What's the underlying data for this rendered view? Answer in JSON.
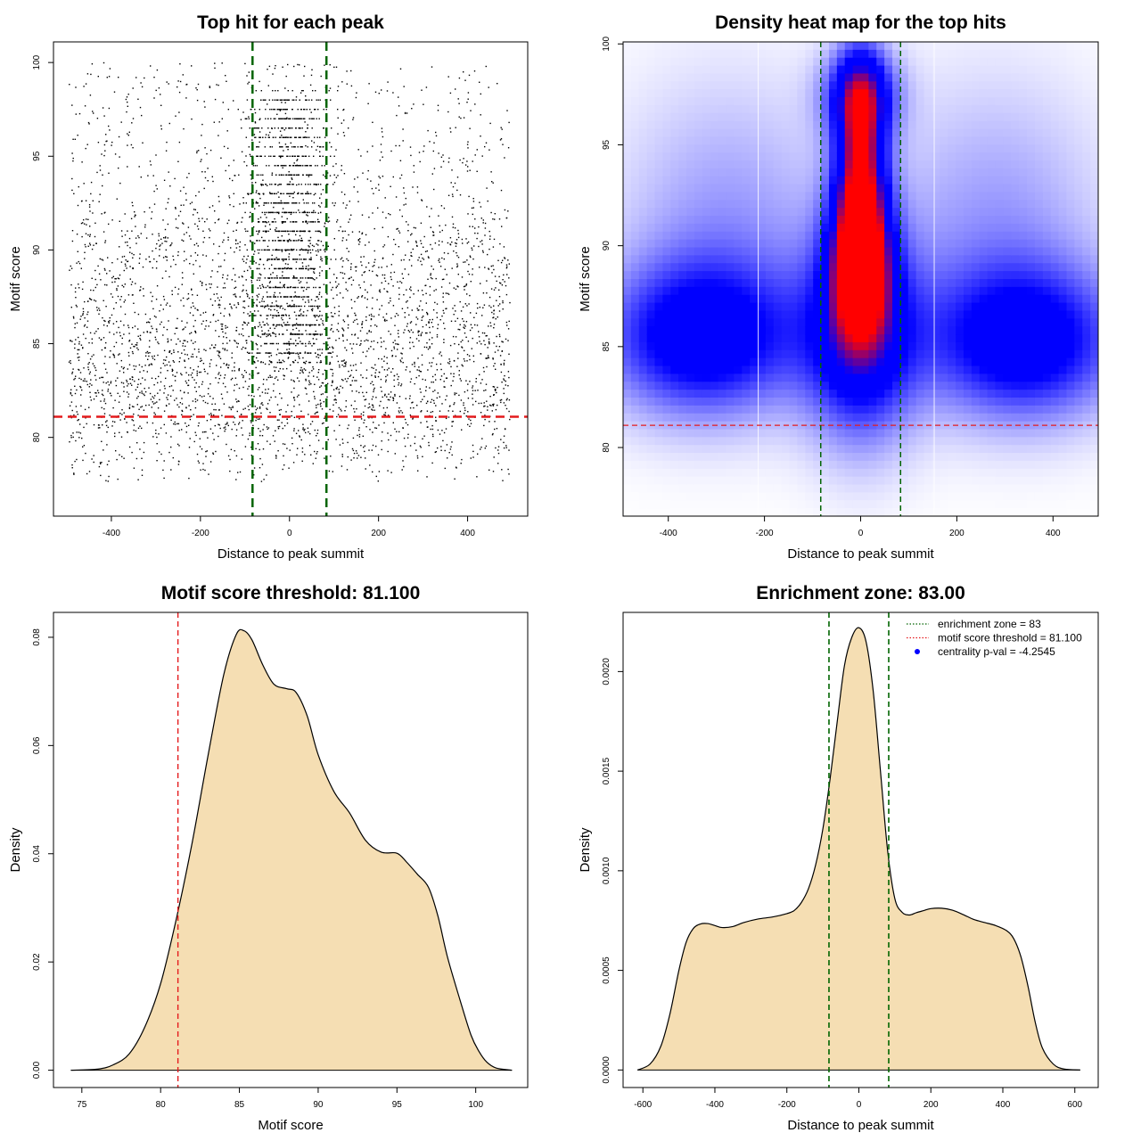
{
  "chart_data": [
    {
      "id": "scatter",
      "type": "scatter",
      "title": "Top hit for each peak",
      "xlabel": "Distance to peak summit",
      "ylabel": "Motif score",
      "xlim": [
        -530,
        535
      ],
      "ylim": [
        75.8,
        101.1
      ],
      "xticks": [
        -400,
        -200,
        0,
        200,
        400
      ],
      "yticks": [
        80,
        85,
        90,
        95,
        100
      ],
      "xtick_labels": [
        "-400",
        "-200",
        "0",
        "200",
        "400"
      ],
      "ytick_labels": [
        "80",
        "85",
        "90",
        "95",
        "100"
      ],
      "n_points": 5200,
      "x_range": [
        -495,
        495
      ],
      "score_range": [
        77.6,
        100
      ],
      "central_cluster": {
        "x_mean": 0,
        "x_sd": 45,
        "score_range": [
          84,
          98.5
        ]
      },
      "threshold": 81.1,
      "enrichment_zone": [
        -83,
        83
      ],
      "colors": {
        "points": "#000000",
        "threshold": "#e41a1c",
        "zone": "#006400"
      }
    },
    {
      "id": "heatmap",
      "type": "heatmap",
      "title": "Density heat map for the top hits",
      "xlabel": "Distance to peak summit",
      "ylabel": "Motif score",
      "xlim": [
        -494,
        494
      ],
      "ylim": [
        76.6,
        100.1
      ],
      "xticks": [
        -400,
        -200,
        0,
        200,
        400
      ],
      "yticks": [
        80,
        85,
        90,
        95,
        100
      ],
      "xtick_labels": [
        "-400",
        "-200",
        "0",
        "200",
        "400"
      ],
      "ytick_labels": [
        "80",
        "85",
        "90",
        "95",
        "100"
      ],
      "hotspots": [
        {
          "x": 0,
          "y": 89.5,
          "level": "high"
        },
        {
          "x": 0,
          "y": 95,
          "level": "high"
        },
        {
          "x": -370,
          "y": 85.4,
          "level": "medium"
        },
        {
          "x": 400,
          "y": 85.2,
          "level": "medium"
        }
      ],
      "white_lines_x": [
        -213,
        153
      ],
      "threshold": 81.1,
      "enrichment_zone": [
        -83,
        83
      ],
      "colors": {
        "low": "#ffffff",
        "mid": "#0000ff",
        "high": "#ff0000",
        "threshold": "#e41a1c",
        "zone": "#006400"
      }
    },
    {
      "id": "score-density",
      "type": "area",
      "title": "Motif score threshold: 81.100",
      "xlabel": "Motif score",
      "ylabel": "Density",
      "xlim": [
        73.2,
        103.3
      ],
      "ylim": [
        -0.0032,
        0.0846
      ],
      "xticks": [
        75,
        80,
        85,
        90,
        95,
        100
      ],
      "yticks": [
        0,
        0.02,
        0.04,
        0.06,
        0.08
      ],
      "xtick_labels": [
        "75",
        "80",
        "85",
        "90",
        "95",
        "100"
      ],
      "ytick_labels": [
        "0.00",
        "0.02",
        "0.04",
        "0.06",
        "0.08"
      ],
      "x": [
        74.3,
        76,
        77,
        78,
        79,
        80,
        81,
        82,
        83,
        84,
        84.8,
        85.3,
        85.8,
        86.5,
        87.2,
        88,
        88.6,
        89.3,
        90,
        91,
        92,
        93,
        94,
        95,
        95.6,
        96.3,
        97,
        97.6,
        98.2,
        99,
        99.7,
        100.2,
        100.7,
        101.3,
        102.3
      ],
      "y": [
        0.0,
        0.0002,
        0.001,
        0.003,
        0.008,
        0.016,
        0.028,
        0.042,
        0.058,
        0.073,
        0.0805,
        0.0812,
        0.0795,
        0.0748,
        0.0713,
        0.0705,
        0.0698,
        0.0655,
        0.0583,
        0.0515,
        0.0475,
        0.0425,
        0.0403,
        0.0401,
        0.0385,
        0.0362,
        0.0338,
        0.0285,
        0.021,
        0.013,
        0.0065,
        0.0035,
        0.0015,
        0.0004,
        0.0
      ],
      "threshold": 81.1,
      "colors": {
        "fill": "#f5deb3",
        "line": "#000000",
        "threshold": "#e41a1c"
      }
    },
    {
      "id": "distance-density",
      "type": "area",
      "title": "Enrichment zone: 83.00",
      "xlabel": "Distance to peak summit",
      "ylabel": "Density",
      "xlim": [
        -655,
        665
      ],
      "ylim": [
        -8.8e-05,
        0.002297
      ],
      "xticks": [
        -600,
        -400,
        -200,
        0,
        200,
        400,
        600
      ],
      "yticks": [
        0,
        0.0005,
        0.001,
        0.0015,
        0.002
      ],
      "xtick_labels": [
        "-600",
        "-400",
        "-200",
        "0",
        "200",
        "400",
        "600"
      ],
      "ytick_labels": [
        "0.0000",
        "0.0005",
        "0.0010",
        "0.0015",
        "0.0020"
      ],
      "x": [
        -615,
        -580,
        -550,
        -525,
        -500,
        -480,
        -460,
        -440,
        -420,
        -400,
        -380,
        -350,
        -320,
        -280,
        -240,
        -200,
        -180,
        -160,
        -140,
        -120,
        -100,
        -80,
        -60,
        -40,
        -20,
        0,
        20,
        40,
        60,
        80,
        100,
        120,
        140,
        160,
        180,
        200,
        230,
        260,
        290,
        320,
        350,
        380,
        410,
        430,
        450,
        470,
        490,
        510,
        540,
        570,
        615
      ],
      "y": [
        0.0,
        3e-05,
        0.00012,
        0.00028,
        0.0005,
        0.00064,
        0.00071,
        0.000733,
        0.000735,
        0.000725,
        0.000715,
        0.00072,
        0.00074,
        0.000758,
        0.000768,
        0.000785,
        0.0008,
        0.00084,
        0.00091,
        0.00103,
        0.00121,
        0.00146,
        0.00175,
        0.00203,
        0.00217,
        0.00222,
        0.00215,
        0.0019,
        0.0015,
        0.0011,
        0.00086,
        0.000792,
        0.000778,
        0.00079,
        0.0008,
        0.00081,
        0.000812,
        0.000802,
        0.00078,
        0.000755,
        0.00074,
        0.000725,
        0.0007,
        0.00066,
        0.00057,
        0.00042,
        0.00024,
        0.00011,
        3e-05,
        5e-06,
        0.0
      ],
      "enrichment_zone": [
        -83,
        83
      ],
      "legend": [
        {
          "label": "enrichment zone = 83",
          "style": "dotted",
          "color": "#006400"
        },
        {
          "label": "motif score threshold = 81.100",
          "style": "dotted",
          "color": "#e41a1c"
        },
        {
          "label": "centrality p-val = -4.2545",
          "style": "point",
          "color": "#0000ff"
        }
      ],
      "legend_position": "top-right",
      "colors": {
        "fill": "#f5deb3",
        "line": "#000000",
        "zone": "#006400"
      }
    }
  ]
}
